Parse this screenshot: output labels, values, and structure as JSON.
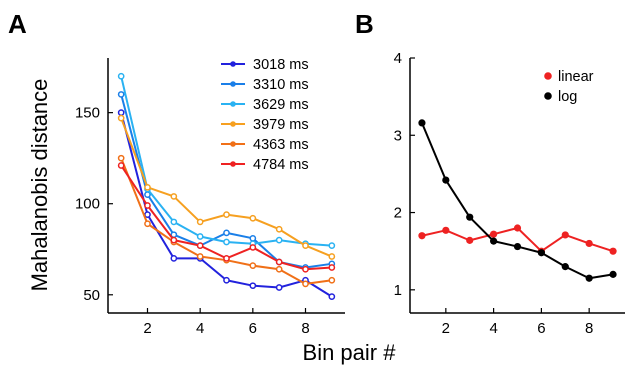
{
  "figure": {
    "shared_xlabel": "Bin pair #"
  },
  "chart_data": [
    {
      "panel": "A",
      "type": "line",
      "ylabel": "Mahalanobis distance",
      "xlim": [
        0.5,
        9.5
      ],
      "ylim": [
        40,
        180
      ],
      "xticks": [
        2,
        4,
        6,
        8
      ],
      "yticks": [
        50,
        100,
        150
      ],
      "x": [
        1,
        2,
        3,
        4,
        5,
        6,
        7,
        8,
        9
      ],
      "grid": false,
      "legend_position": "top-right",
      "series": [
        {
          "name": "3018 ms",
          "color": "#2222dd",
          "values": [
            150,
            94,
            70,
            70,
            58,
            55,
            54,
            58,
            49
          ]
        },
        {
          "name": "3310 ms",
          "color": "#1a7fe8",
          "values": [
            160,
            105,
            83,
            77,
            84,
            81,
            68,
            65,
            67
          ]
        },
        {
          "name": "3629 ms",
          "color": "#2ab2f2",
          "values": [
            170,
            108,
            90,
            82,
            79,
            78,
            80,
            78,
            77
          ]
        },
        {
          "name": "3979 ms",
          "color": "#f6a020",
          "values": [
            147,
            109,
            104,
            90,
            94,
            92,
            86,
            77,
            71
          ]
        },
        {
          "name": "4363 ms",
          "color": "#f07018",
          "values": [
            125,
            89,
            79,
            71,
            69,
            66,
            64,
            56,
            58
          ]
        },
        {
          "name": "4784 ms",
          "color": "#ee2222",
          "values": [
            121,
            99,
            80,
            77,
            70,
            76,
            68,
            64,
            65
          ]
        }
      ]
    },
    {
      "panel": "B",
      "type": "line",
      "ylabel": "",
      "xlim": [
        0.5,
        9.5
      ],
      "ylim": [
        0.7,
        4.0
      ],
      "xticks": [
        2,
        4,
        6,
        8
      ],
      "yticks": [
        1,
        2,
        3,
        4
      ],
      "x": [
        1,
        2,
        3,
        4,
        5,
        6,
        7,
        8,
        9
      ],
      "grid": false,
      "legend_position": "top-right",
      "series": [
        {
          "name": "linear",
          "color": "#ee2222",
          "values": [
            1.7,
            1.77,
            1.64,
            1.72,
            1.8,
            1.5,
            1.71,
            1.6,
            1.5
          ]
        },
        {
          "name": "log",
          "color": "#000000",
          "values": [
            3.16,
            2.42,
            1.94,
            1.63,
            1.56,
            1.48,
            1.3,
            1.15,
            1.2
          ]
        }
      ]
    }
  ]
}
